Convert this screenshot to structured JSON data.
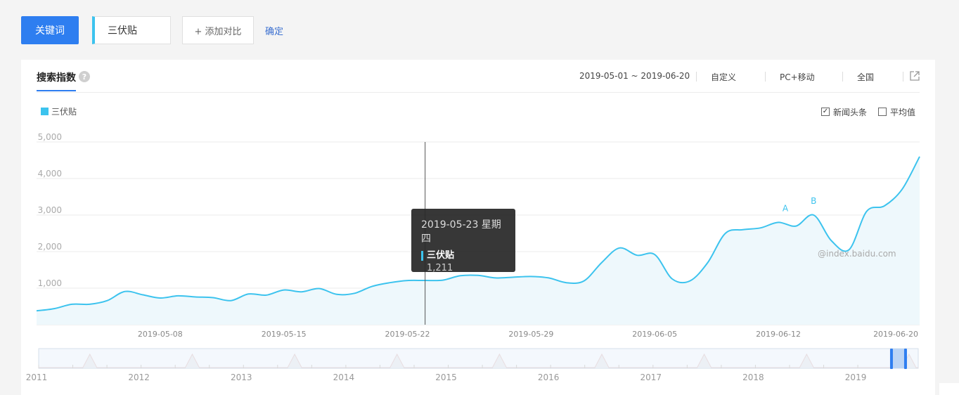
{
  "toolbar": {
    "keyword_button": "关键词",
    "keyword_value": "三伏贴",
    "add_compare": "+ 添加对比",
    "confirm": "确定"
  },
  "panel": {
    "tab_title": "搜索指数",
    "help_glyph": "?",
    "date_range": "2019-05-01 ~ 2019-06-20",
    "custom": "自定义",
    "device": "PC+移动",
    "region": "全国"
  },
  "legend": {
    "series_name": "三伏贴",
    "color": "#3cc3ee"
  },
  "options": {
    "news": {
      "label": "新闻头条",
      "checked": true,
      "mark": "✓"
    },
    "average": {
      "label": "平均值",
      "checked": false,
      "mark": ""
    }
  },
  "tooltip": {
    "date": "2019-05-23 星期四",
    "series": "三伏贴",
    "value": "1,211"
  },
  "watermark": "@index.baidu.com",
  "chart_data": {
    "type": "area",
    "ylim": [
      0,
      5000
    ],
    "y_ticks": [
      "1,000",
      "2,000",
      "3,000",
      "4,000",
      "5,000"
    ],
    "x_start": "2019-05-01",
    "x_end": "2019-06-20",
    "x_tick_labels": [
      "2019-05-08",
      "2019-05-15",
      "2019-05-22",
      "2019-05-29",
      "2019-06-05",
      "2019-06-12",
      "2019-06-20"
    ],
    "x_tick_dates": [
      "2019-05-08",
      "2019-05-15",
      "2019-05-22",
      "2019-05-29",
      "2019-06-05",
      "2019-06-12",
      "2019-06-20"
    ],
    "series": [
      {
        "name": "三伏贴",
        "color": "#3cc3ee",
        "dates": [
          "2019-05-01",
          "2019-05-02",
          "2019-05-03",
          "2019-05-04",
          "2019-05-05",
          "2019-05-06",
          "2019-05-07",
          "2019-05-08",
          "2019-05-09",
          "2019-05-10",
          "2019-05-11",
          "2019-05-12",
          "2019-05-13",
          "2019-05-14",
          "2019-05-15",
          "2019-05-16",
          "2019-05-17",
          "2019-05-18",
          "2019-05-19",
          "2019-05-20",
          "2019-05-21",
          "2019-05-22",
          "2019-05-23",
          "2019-05-24",
          "2019-05-25",
          "2019-05-26",
          "2019-05-27",
          "2019-05-28",
          "2019-05-29",
          "2019-05-30",
          "2019-05-31",
          "2019-06-01",
          "2019-06-02",
          "2019-06-03",
          "2019-06-04",
          "2019-06-05",
          "2019-06-06",
          "2019-06-07",
          "2019-06-08",
          "2019-06-09",
          "2019-06-10",
          "2019-06-11",
          "2019-06-12",
          "2019-06-13",
          "2019-06-14",
          "2019-06-15",
          "2019-06-16",
          "2019-06-17",
          "2019-06-18",
          "2019-06-19",
          "2019-06-20"
        ],
        "values": [
          380,
          440,
          560,
          560,
          660,
          910,
          820,
          730,
          790,
          760,
          740,
          660,
          840,
          810,
          950,
          900,
          990,
          830,
          860,
          1050,
          1150,
          1210,
          1211,
          1220,
          1340,
          1350,
          1280,
          1300,
          1320,
          1280,
          1150,
          1200,
          1700,
          2100,
          1900,
          1920,
          1250,
          1200,
          1700,
          2500,
          2600,
          2650,
          2800,
          2700,
          3000,
          2300,
          2050,
          3100,
          3250,
          3700,
          4600
        ]
      }
    ],
    "hover_date": "2019-05-23",
    "annotations": [
      {
        "label": "A",
        "date": "2019-06-12"
      },
      {
        "label": "B",
        "date": "2019-06-14"
      }
    ],
    "overview": {
      "year_labels": [
        "2011",
        "2012",
        "2013",
        "2014",
        "2015",
        "2016",
        "2017",
        "2018",
        "2019"
      ],
      "years": [
        2011,
        2012,
        2013,
        2014,
        2015,
        2016,
        2017,
        2018,
        2019
      ],
      "start_year": 2011,
      "end_year": 2019.59,
      "seasonal_peak_month": 7,
      "selection": [
        "2019-05-01",
        "2019-06-20"
      ]
    }
  }
}
